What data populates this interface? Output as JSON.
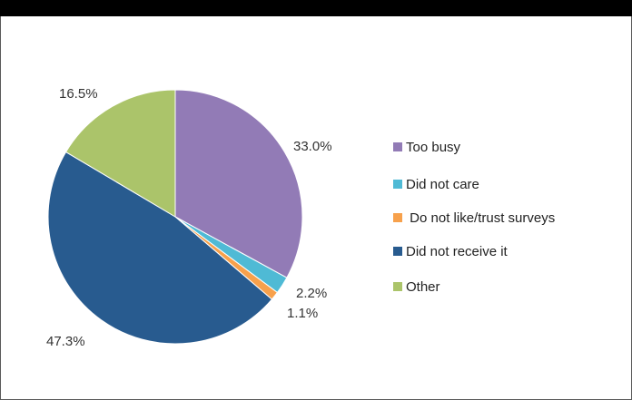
{
  "chart_data": {
    "type": "pie",
    "categories": [
      "Too busy",
      "Did not care",
      " Do not like/trust surveys",
      "Did not receive it",
      "Other"
    ],
    "values": [
      33.0,
      2.2,
      1.1,
      47.3,
      16.5
    ],
    "data_labels": [
      "33.0%",
      "2.2%",
      "1.1%",
      "47.3%",
      "16.5%"
    ],
    "colors": [
      "#927bb6",
      "#4fbad5",
      "#f7a14c",
      "#285b8f",
      "#abc46a"
    ],
    "start_angle_deg": 0,
    "direction": "clockwise",
    "legend_placement": "right"
  }
}
